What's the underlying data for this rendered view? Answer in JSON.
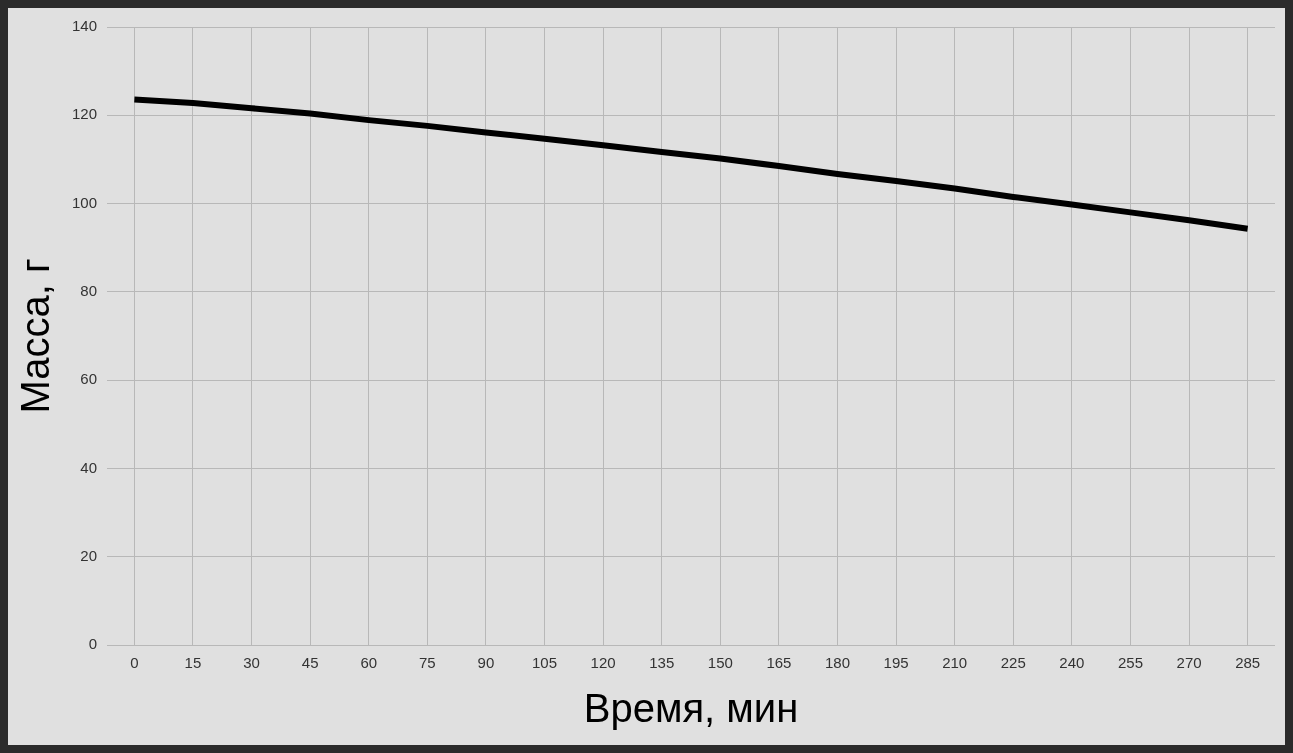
{
  "chart_data": {
    "type": "line",
    "xlabel": "Время, мин",
    "ylabel": "Масса, г",
    "x": [
      0,
      15,
      30,
      45,
      60,
      75,
      90,
      105,
      120,
      135,
      150,
      165,
      180,
      195,
      210,
      225,
      240,
      255,
      270,
      285
    ],
    "series": [
      {
        "color": "#000000",
        "values": [
          123.6,
          122.8,
          121.6,
          120.4,
          118.9,
          117.6,
          116.1,
          114.7,
          113.2,
          111.7,
          110.2,
          108.5,
          106.7,
          105.1,
          103.4,
          101.5,
          99.8,
          98.0,
          96.2,
          94.3
        ]
      }
    ],
    "xlim": [
      -7,
      292
    ],
    "xticks": [
      0,
      15,
      30,
      45,
      60,
      75,
      90,
      105,
      120,
      135,
      150,
      165,
      180,
      195,
      210,
      225,
      240,
      255,
      270,
      285
    ],
    "ylim": [
      0,
      140
    ],
    "yticks": [
      0,
      20,
      40,
      60,
      80,
      100,
      120,
      140
    ],
    "grid": true,
    "legend": false,
    "marker": "none",
    "line_style": "solid"
  }
}
